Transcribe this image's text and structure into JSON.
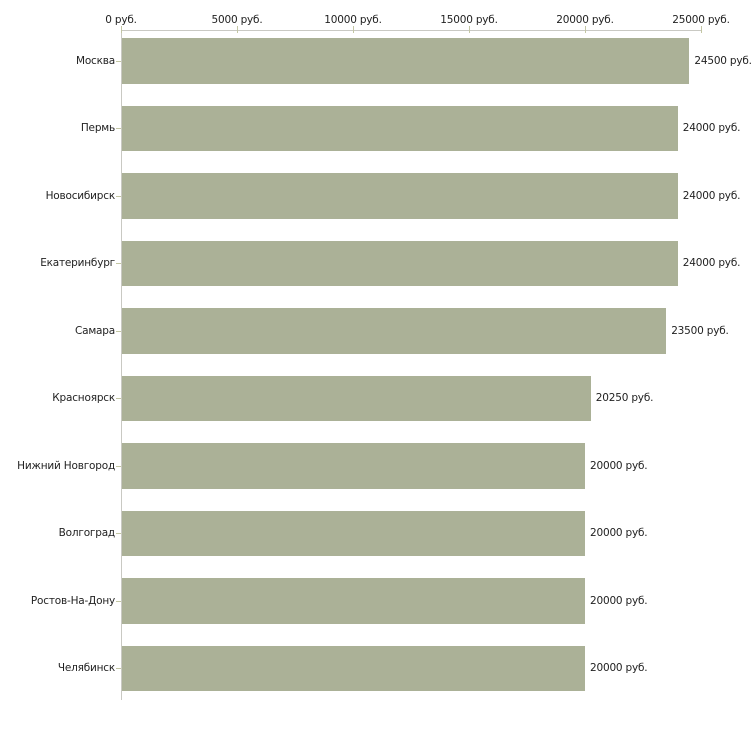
{
  "chart_data": {
    "type": "bar",
    "orientation": "horizontal",
    "title": "",
    "categories": [
      "Москва",
      "Пермь",
      "Новосибирск",
      "Екатеринбург",
      "Самара",
      "Красноярск",
      "Нижний Новгород",
      "Волгоград",
      "Ростов-На-Дону",
      "Челябинск"
    ],
    "values": [
      24500,
      24000,
      24000,
      24000,
      23500,
      20250,
      20000,
      20000,
      20000,
      20000
    ],
    "value_labels": [
      "24500 руб.",
      "24000 руб.",
      "24000 руб.",
      "24000 руб.",
      "23500 руб.",
      "20250 руб.",
      "20000 руб.",
      "20000 руб.",
      "20000 руб.",
      "20000 руб."
    ],
    "x_axis": {
      "position": "top",
      "min": 0,
      "max": 25000,
      "tick_interval": 5000,
      "tick_values": [
        0,
        5000,
        10000,
        15000,
        20000,
        25000
      ],
      "tick_labels": [
        "0 руб.",
        "5000 руб.",
        "10000 руб.",
        "15000 руб.",
        "20000 руб.",
        "25000 руб."
      ]
    },
    "unit": "руб.",
    "grid": false,
    "legend": false
  },
  "colors": {
    "bar_fill": "#abb197",
    "axis_line": "#c9c9c3",
    "tick_mark": "#c3c6a3",
    "text": "#222222",
    "background": "#ffffff"
  }
}
